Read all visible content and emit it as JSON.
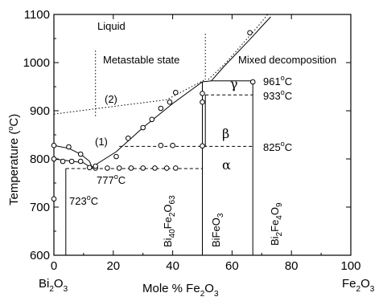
{
  "chart_data": {
    "type": "line",
    "xlabel": "Mole % Fe",
    "xlabel_sub": "2",
    "xlabel_tail": "O",
    "xlabel_sub2": "3",
    "ylabel": "Temperature (",
    "ylabel_sup": "o",
    "ylabel_tail": "C)",
    "xlim": [
      0,
      100
    ],
    "ylim": [
      600,
      1100
    ],
    "xticks": [
      0,
      20,
      40,
      60,
      80,
      100
    ],
    "yticks": [
      600,
      700,
      800,
      900,
      1000,
      1100
    ],
    "grid": false,
    "end_left": {
      "main": "Bi",
      "sub": "2",
      "tail": "O",
      "sub2": "3"
    },
    "end_right": {
      "main": "Fe",
      "sub": "2",
      "tail": "O",
      "sub2": "3"
    },
    "compounds": [
      {
        "id": "bi40",
        "x": 50,
        "parts": [
          "Bi",
          "40",
          "Fe",
          "2",
          "O",
          "63"
        ]
      },
      {
        "id": "bife",
        "x": 50,
        "parts": [
          "BiFeO",
          "3"
        ]
      },
      {
        "id": "bi2fe4",
        "x": 66.7,
        "parts": [
          "Bi",
          "2",
          "Fe",
          "4",
          "O",
          "9"
        ]
      }
    ],
    "regions": {
      "liquid": "Liquid",
      "metastable": "Metastable state",
      "mixed": "Mixed decomposition",
      "beta": "β",
      "alpha": "α",
      "gamma": "γ"
    },
    "curve_labels": {
      "c1": "(1)",
      "c2": "(2)"
    },
    "temperature_labels": {
      "t961": {
        "value": "961",
        "unit": "C",
        "x": 67,
        "y": 961
      },
      "t933": {
        "value": "933",
        "unit": "C",
        "x": 67,
        "y": 933
      },
      "t825": {
        "value": "825",
        "unit": "C",
        "x": 67,
        "y": 825
      },
      "t777": {
        "value": "777",
        "unit": "C",
        "x": 15,
        "y": 777
      },
      "t723": {
        "value": "723",
        "unit": "C",
        "x": 0,
        "y": 723
      },
      "deg": "o"
    },
    "series": [
      {
        "id": "liquidus1",
        "style": "solid",
        "points": [
          [
            12,
            780
          ],
          [
            21,
            815
          ],
          [
            30,
            865
          ],
          [
            40,
            915
          ],
          [
            50,
            960
          ],
          [
            53,
            962
          ],
          [
            67,
            962
          ]
        ]
      },
      {
        "id": "liquidus_hi",
        "style": "solid",
        "points": [
          [
            53,
            962
          ],
          [
            57,
            990
          ],
          [
            66,
            1048
          ],
          [
            70,
            1075
          ],
          [
            73,
            1095
          ]
        ]
      },
      {
        "id": "liquidus_hi_dashed",
        "style": "dotted",
        "points": [
          [
            52,
            965
          ],
          [
            58,
            1000
          ],
          [
            68,
            1070
          ],
          [
            72,
            1100
          ]
        ]
      },
      {
        "id": "bi_liquidus",
        "style": "solid",
        "points": [
          [
            0,
            828
          ],
          [
            5,
            822
          ],
          [
            9,
            810
          ],
          [
            12,
            795
          ],
          [
            13,
            780
          ]
        ]
      },
      {
        "id": "bi_solvus",
        "style": "solid",
        "points": [
          [
            0,
            800
          ],
          [
            5,
            796
          ],
          [
            10,
            792
          ],
          [
            13,
            780
          ]
        ]
      },
      {
        "id": "metastable2",
        "style": "dotted",
        "points": [
          [
            0,
            893
          ],
          [
            15,
            905
          ],
          [
            38,
            923
          ],
          [
            51,
            965
          ]
        ]
      },
      {
        "id": "meta_vertical",
        "style": "dotted",
        "points": [
          [
            14,
            1025
          ],
          [
            14,
            885
          ]
        ]
      },
      {
        "id": "beta_vertical_dotted",
        "style": "dotted",
        "points": [
          [
            51,
            1060
          ],
          [
            51,
            965
          ]
        ]
      },
      {
        "id": "eutectic",
        "style": "dashed",
        "points": [
          [
            4,
            780
          ],
          [
            50,
            780
          ]
        ]
      },
      {
        "id": "alpha_beta",
        "style": "dashed",
        "points": [
          [
            22,
            826
          ],
          [
            67,
            826
          ]
        ]
      },
      {
        "id": "beta_gamma",
        "style": "dashed",
        "points": [
          [
            51,
            933
          ],
          [
            67,
            933
          ]
        ]
      },
      {
        "id": "v_bi_left",
        "style": "solid",
        "points": [
          [
            4,
            780
          ],
          [
            4,
            600
          ]
        ]
      },
      {
        "id": "v_bife",
        "style": "solid",
        "points": [
          [
            50,
            960
          ],
          [
            50,
            600
          ]
        ]
      },
      {
        "id": "v_bife_right",
        "style": "solid",
        "points": [
          [
            51,
            933
          ],
          [
            51,
            826
          ]
        ]
      },
      {
        "id": "v_bi2fe4",
        "style": "solid",
        "points": [
          [
            67,
            962
          ],
          [
            67,
            600
          ]
        ]
      }
    ],
    "points": [
      [
        0,
        828
      ],
      [
        5,
        825
      ],
      [
        9,
        810
      ],
      [
        0,
        800
      ],
      [
        3,
        795
      ],
      [
        6,
        795
      ],
      [
        9,
        795
      ],
      [
        12,
        782
      ],
      [
        0,
        717
      ],
      [
        14,
        781
      ],
      [
        18,
        781
      ],
      [
        22,
        781
      ],
      [
        26,
        781
      ],
      [
        30,
        781
      ],
      [
        34,
        781
      ],
      [
        38,
        781
      ],
      [
        41,
        781
      ],
      [
        14,
        785
      ],
      [
        21,
        805
      ],
      [
        25,
        843
      ],
      [
        30,
        865
      ],
      [
        33,
        882
      ],
      [
        36,
        905
      ],
      [
        39,
        918
      ],
      [
        41,
        938
      ],
      [
        36,
        828
      ],
      [
        40,
        828
      ],
      [
        50,
        827
      ],
      [
        50,
        936
      ],
      [
        50,
        918
      ],
      [
        67,
        960
      ],
      [
        66,
        1062
      ]
    ]
  }
}
